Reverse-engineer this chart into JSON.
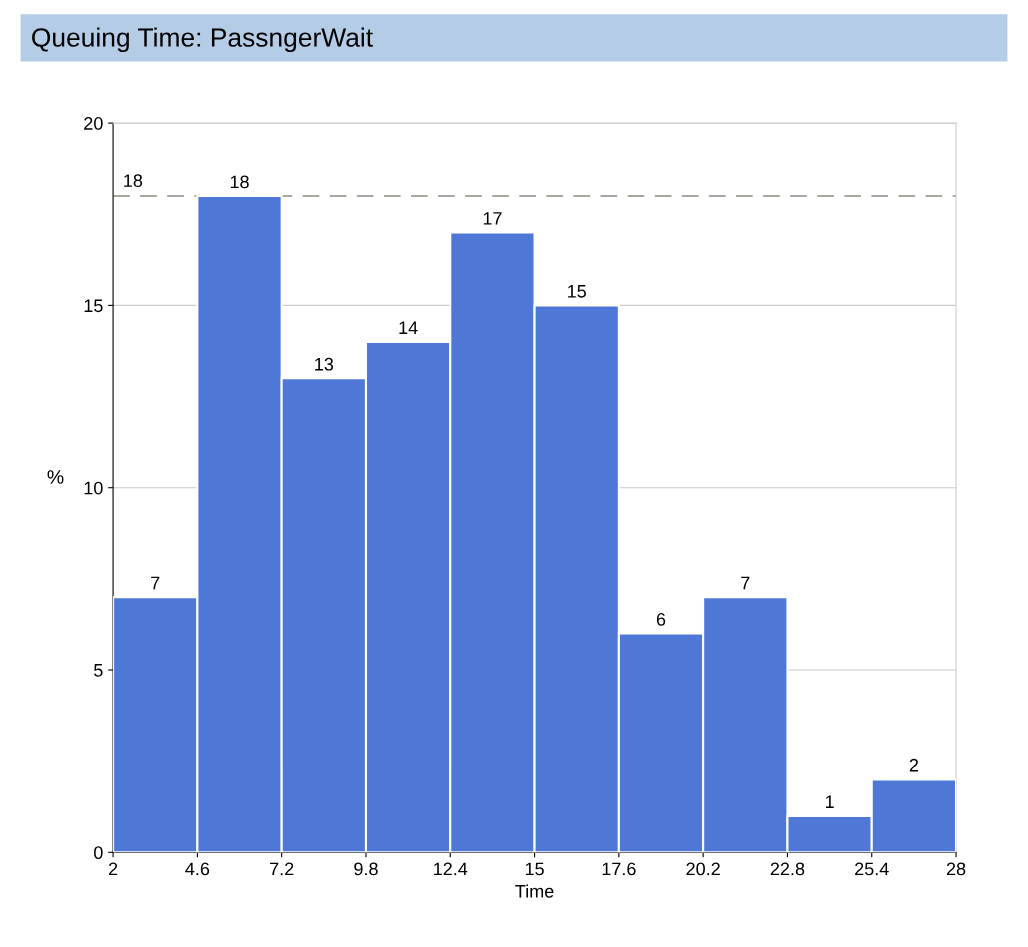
{
  "chart_data": {
    "type": "histogram",
    "title": "Queuing Time: PassngerWait",
    "xlabel": "Time",
    "ylabel": "%",
    "bins": [
      2,
      4.6,
      7.2,
      9.8,
      12.4,
      15,
      17.6,
      20.2,
      22.8,
      25.4,
      28
    ],
    "values": [
      7,
      18,
      13,
      14,
      17,
      15,
      6,
      7,
      1,
      2
    ],
    "color": "#4f78d6",
    "xlim": [
      2,
      28
    ],
    "xticks": [
      2,
      4.6,
      7.2,
      9.8,
      12.4,
      15,
      17.6,
      20.2,
      22.8,
      25.4,
      28
    ],
    "ylim": [
      0,
      20
    ],
    "yticks": [
      0,
      5,
      10,
      15,
      20
    ],
    "grid": "y",
    "legend": false,
    "data_labels": true,
    "ref_lines": [
      {
        "axis": "y",
        "value": 18,
        "label": "18",
        "color": "#a8a8a0",
        "line_style": "dashed"
      }
    ]
  }
}
